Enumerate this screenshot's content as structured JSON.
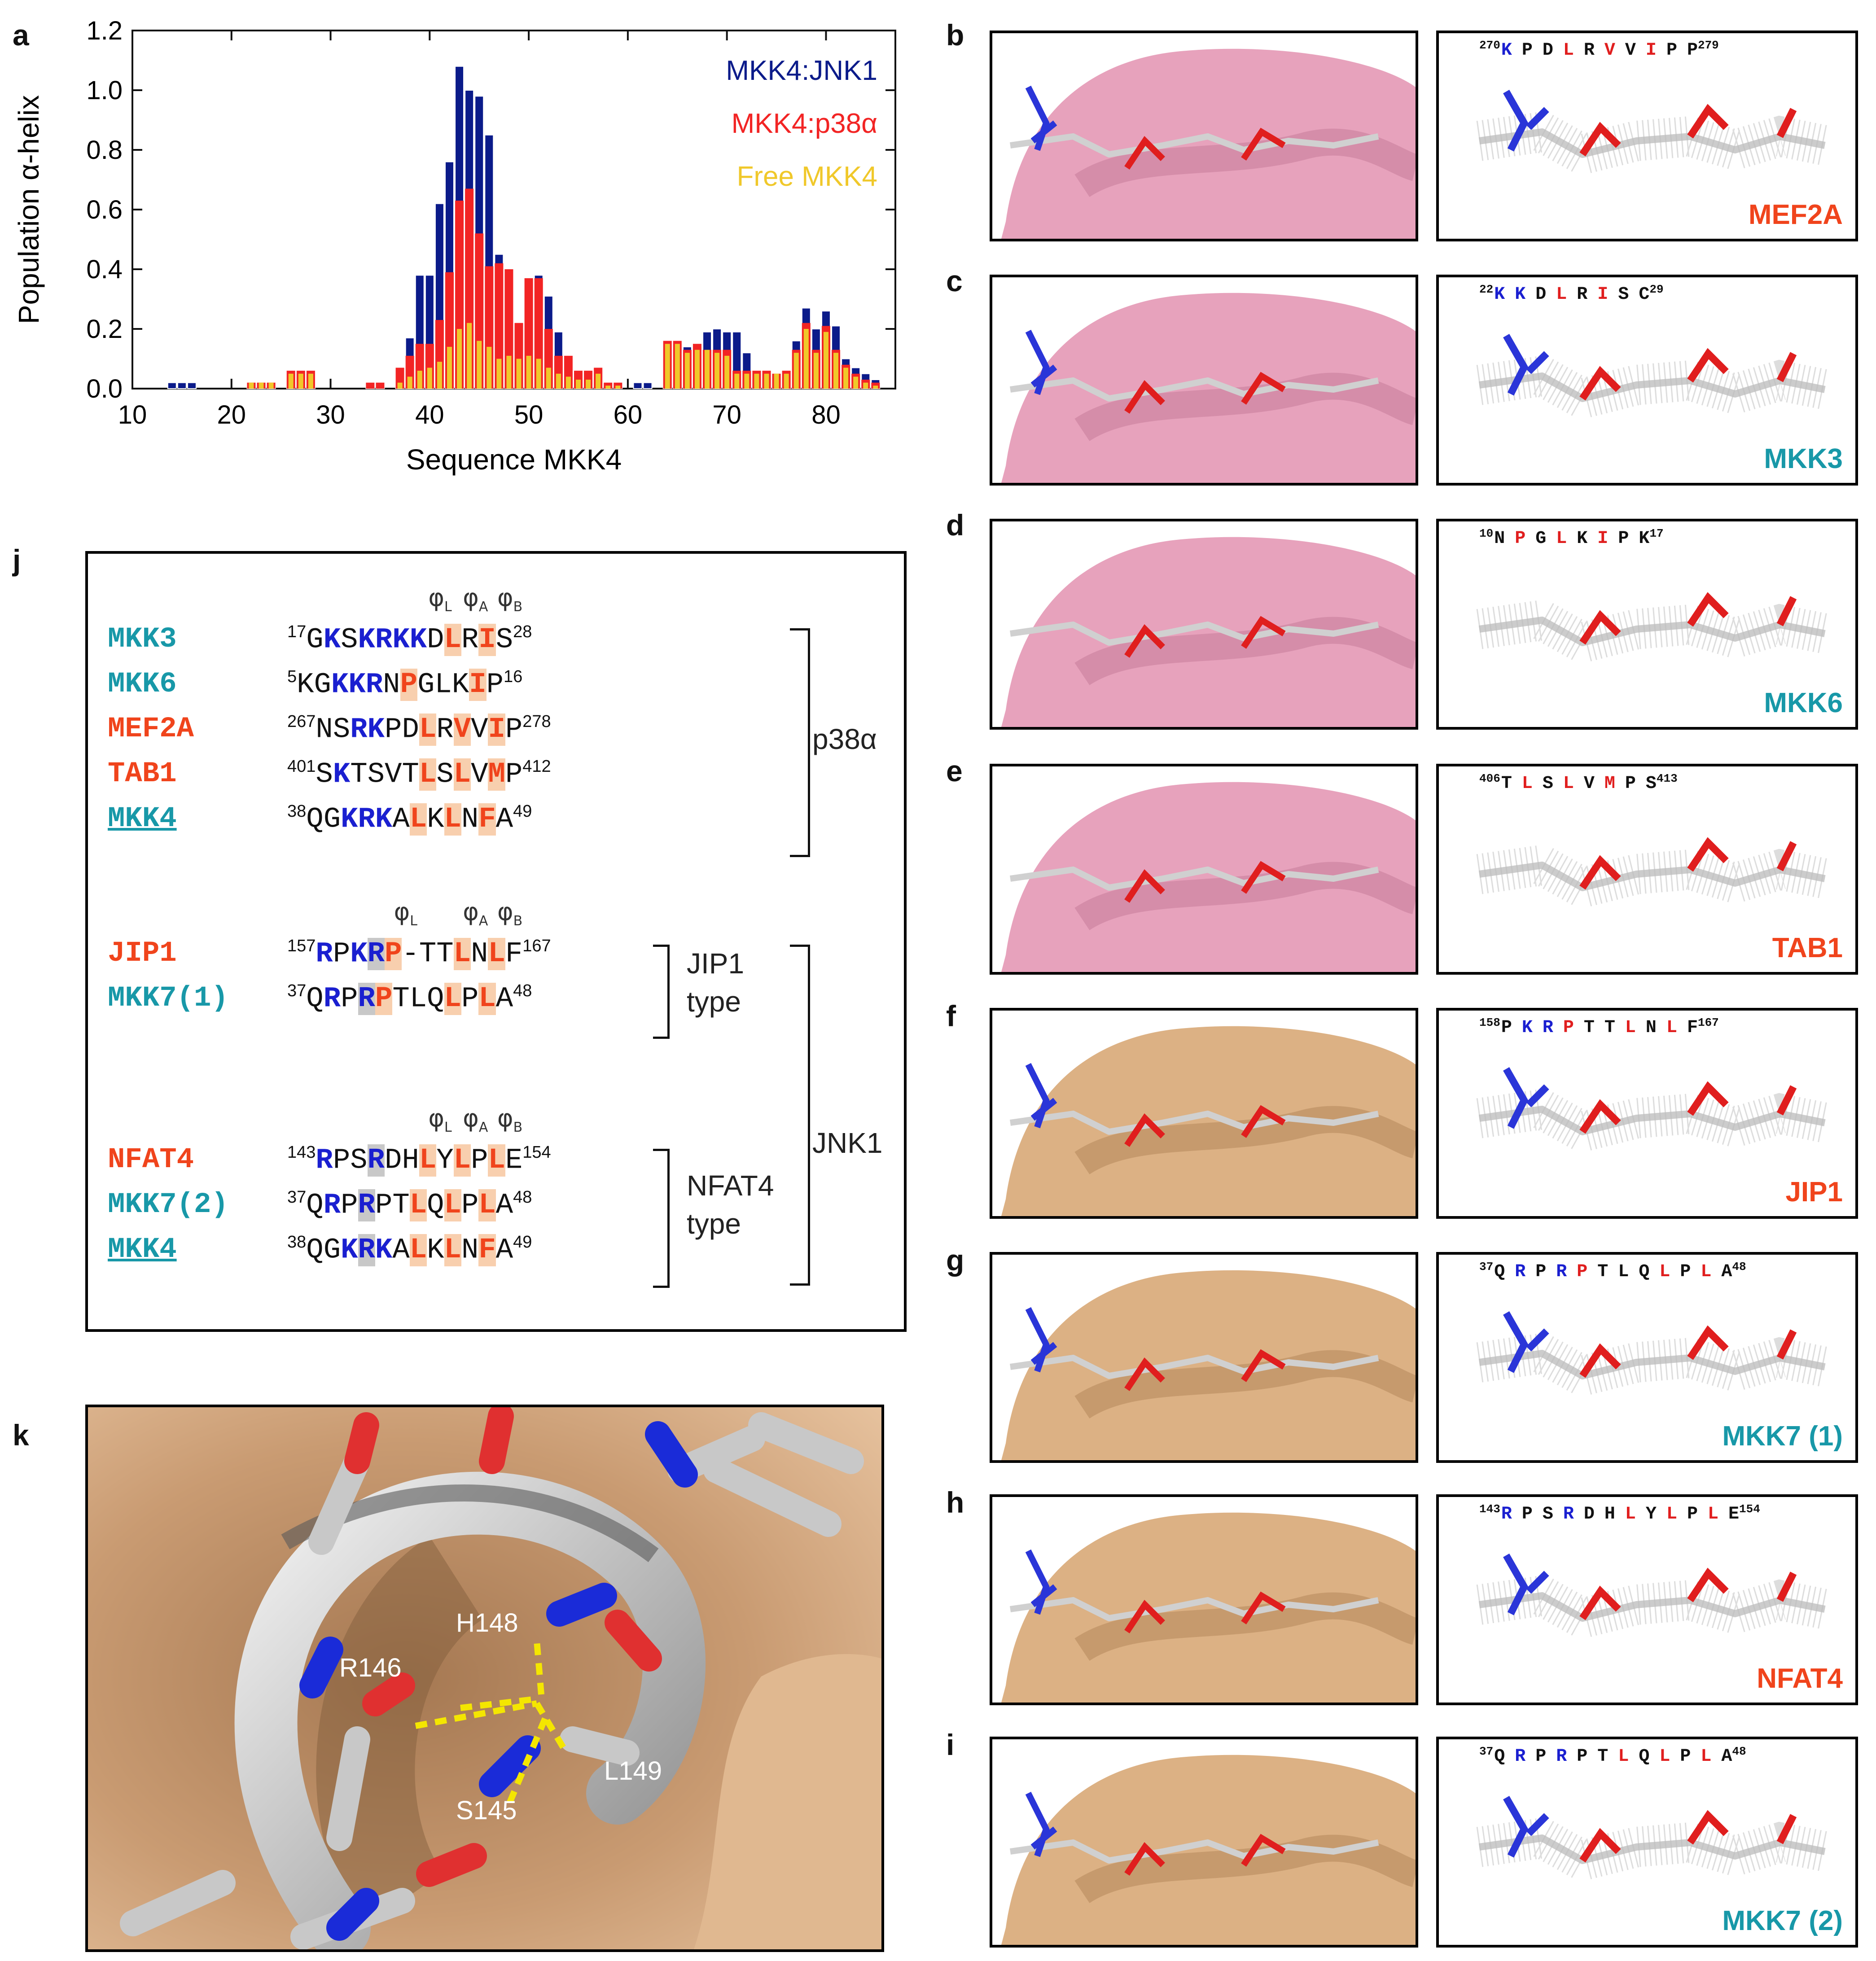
{
  "panels": {
    "a": "a",
    "b": "b",
    "c": "c",
    "d": "d",
    "e": "e",
    "f": "f",
    "g": "g",
    "h": "h",
    "i": "i",
    "j": "j",
    "k": "k"
  },
  "chart_data": {
    "type": "bar",
    "ylabel": "Population α-helix",
    "xlabel": "Sequence MKK4",
    "xlim": [
      10,
      87
    ],
    "ylim": [
      0,
      1.2
    ],
    "xticks": [
      "10",
      "20",
      "30",
      "40",
      "50",
      "60",
      "70",
      "80"
    ],
    "yticks": [
      "0.0",
      "0.2",
      "0.4",
      "0.6",
      "0.8",
      "1.0",
      "1.2"
    ],
    "legend": [
      "MKK4:JNK1",
      "MKK4:p38α",
      "Free MKK4"
    ],
    "colors": [
      "#0b1b8a",
      "#f22424",
      "#f0c82a"
    ],
    "series": [
      {
        "name": "MKK4:JNK1",
        "x": [
          14,
          15,
          16,
          22,
          23,
          24,
          26,
          27,
          28,
          34,
          35,
          37,
          38,
          39,
          40,
          41,
          42,
          43,
          44,
          45,
          46,
          47,
          48,
          49,
          50,
          51,
          52,
          53,
          54,
          55,
          56,
          57,
          58,
          59,
          61,
          62,
          64,
          65,
          66,
          67,
          68,
          69,
          70,
          71,
          72,
          73,
          74,
          75,
          76,
          77,
          78,
          79,
          80,
          81,
          82,
          83,
          84,
          85
        ],
        "values": [
          0.02,
          0.02,
          0.02,
          0.02,
          0.02,
          0.02,
          0.06,
          0.06,
          0.06,
          0.02,
          0.02,
          0.07,
          0.17,
          0.38,
          0.38,
          0.62,
          0.76,
          1.08,
          1.0,
          0.98,
          0.85,
          0.45,
          0.4,
          0.22,
          0.31,
          0.38,
          0.31,
          0.19,
          0.11,
          0.06,
          0.06,
          0.07,
          0.02,
          0.02,
          0.02,
          0.02,
          0.16,
          0.16,
          0.14,
          0.15,
          0.19,
          0.2,
          0.19,
          0.19,
          0.12,
          0.06,
          0.06,
          0.05,
          0.06,
          0.16,
          0.27,
          0.2,
          0.26,
          0.21,
          0.1,
          0.07,
          0.05,
          0.03
        ]
      },
      {
        "name": "MKK4:p38α",
        "x": [
          14,
          15,
          16,
          22,
          23,
          24,
          26,
          27,
          28,
          34,
          35,
          37,
          38,
          39,
          40,
          41,
          42,
          43,
          44,
          45,
          46,
          47,
          48,
          49,
          50,
          51,
          52,
          53,
          54,
          55,
          56,
          57,
          58,
          59,
          61,
          62,
          64,
          65,
          66,
          67,
          68,
          69,
          70,
          71,
          72,
          73,
          74,
          75,
          76,
          77,
          78,
          79,
          80,
          81,
          82,
          83,
          84,
          85
        ],
        "values": [
          0.0,
          0.0,
          0.0,
          0.02,
          0.02,
          0.02,
          0.06,
          0.06,
          0.06,
          0.02,
          0.02,
          0.07,
          0.11,
          0.15,
          0.15,
          0.23,
          0.39,
          0.63,
          0.67,
          0.52,
          0.41,
          0.42,
          0.4,
          0.22,
          0.37,
          0.37,
          0.2,
          0.11,
          0.11,
          0.06,
          0.06,
          0.07,
          0.02,
          0.02,
          0.0,
          0.0,
          0.16,
          0.16,
          0.13,
          0.15,
          0.13,
          0.13,
          0.13,
          0.06,
          0.06,
          0.06,
          0.06,
          0.05,
          0.06,
          0.13,
          0.22,
          0.13,
          0.21,
          0.13,
          0.08,
          0.05,
          0.03,
          0.02
        ]
      },
      {
        "name": "Free MKK4",
        "x": [
          14,
          15,
          16,
          22,
          23,
          24,
          26,
          27,
          28,
          34,
          35,
          37,
          38,
          39,
          40,
          41,
          42,
          43,
          44,
          45,
          46,
          47,
          48,
          49,
          50,
          51,
          52,
          53,
          54,
          55,
          56,
          57,
          58,
          59,
          61,
          62,
          64,
          65,
          66,
          67,
          68,
          69,
          70,
          71,
          72,
          73,
          74,
          75,
          76,
          77,
          78,
          79,
          80,
          81,
          82,
          83,
          84,
          85
        ],
        "values": [
          0.0,
          0.0,
          0.0,
          0.02,
          0.02,
          0.02,
          0.05,
          0.05,
          0.05,
          0.0,
          0.0,
          0.02,
          0.04,
          0.06,
          0.07,
          0.09,
          0.14,
          0.2,
          0.22,
          0.16,
          0.14,
          0.1,
          0.11,
          0.1,
          0.11,
          0.1,
          0.07,
          0.05,
          0.04,
          0.03,
          0.03,
          0.05,
          0.01,
          0.01,
          0.0,
          0.0,
          0.15,
          0.15,
          0.12,
          0.13,
          0.13,
          0.12,
          0.11,
          0.05,
          0.05,
          0.05,
          0.05,
          0.05,
          0.05,
          0.12,
          0.2,
          0.12,
          0.19,
          0.12,
          0.07,
          0.04,
          0.02,
          0.01
        ]
      }
    ]
  },
  "structures": [
    {
      "panel": "b",
      "name": "MEF2A",
      "color": "orange",
      "seq": [
        {
          "t": "K",
          "c": "blu",
          "n": "270"
        },
        {
          "t": "P",
          "c": "blk"
        },
        {
          "t": "D",
          "c": "blk"
        },
        {
          "t": "L",
          "c": "red"
        },
        {
          "t": "R",
          "c": "blk"
        },
        {
          "t": "V",
          "c": "red"
        },
        {
          "t": "V",
          "c": "blk"
        },
        {
          "t": "I",
          "c": "red"
        },
        {
          "t": "P",
          "c": "blk"
        },
        {
          "t": "P",
          "c": "blk",
          "e": "279"
        }
      ],
      "surf": "pink"
    },
    {
      "panel": "c",
      "name": "MKK3",
      "color": "teal",
      "seq": [
        {
          "t": "K",
          "c": "blu",
          "n": "22"
        },
        {
          "t": "K",
          "c": "blu"
        },
        {
          "t": "D",
          "c": "blk"
        },
        {
          "t": "L",
          "c": "red"
        },
        {
          "t": "R",
          "c": "blk"
        },
        {
          "t": "I",
          "c": "red"
        },
        {
          "t": "S",
          "c": "blk"
        },
        {
          "t": "C",
          "c": "blk",
          "e": "29"
        }
      ],
      "surf": "pink"
    },
    {
      "panel": "d",
      "name": "MKK6",
      "color": "teal",
      "seq": [
        {
          "t": "N",
          "c": "blk",
          "n": "10"
        },
        {
          "t": "P",
          "c": "red"
        },
        {
          "t": "G",
          "c": "blk"
        },
        {
          "t": "L",
          "c": "red"
        },
        {
          "t": "K",
          "c": "blk"
        },
        {
          "t": "I",
          "c": "red"
        },
        {
          "t": "P",
          "c": "blk"
        },
        {
          "t": "K",
          "c": "blk",
          "e": "17"
        }
      ],
      "surf": "pink"
    },
    {
      "panel": "e",
      "name": "TAB1",
      "color": "orange",
      "seq": [
        {
          "t": "T",
          "c": "blk",
          "n": "406"
        },
        {
          "t": "L",
          "c": "red"
        },
        {
          "t": "S",
          "c": "blk"
        },
        {
          "t": "L",
          "c": "red"
        },
        {
          "t": "V",
          "c": "blk"
        },
        {
          "t": "M",
          "c": "red"
        },
        {
          "t": "P",
          "c": "blk"
        },
        {
          "t": "S",
          "c": "blk",
          "e": "413"
        }
      ],
      "surf": "pink"
    },
    {
      "panel": "f",
      "name": "JIP1",
      "color": "orange",
      "seq": [
        {
          "t": "P",
          "c": "blk",
          "n": "158"
        },
        {
          "t": "K",
          "c": "blu"
        },
        {
          "t": "R",
          "c": "blu"
        },
        {
          "t": "P",
          "c": "red"
        },
        {
          "t": "T",
          "c": "blk"
        },
        {
          "t": "T",
          "c": "blk"
        },
        {
          "t": "L",
          "c": "red"
        },
        {
          "t": "N",
          "c": "blk"
        },
        {
          "t": "L",
          "c": "red"
        },
        {
          "t": "F",
          "c": "blk",
          "e": "167"
        }
      ],
      "surf": "tan"
    },
    {
      "panel": "g",
      "name": "MKK7 (1)",
      "color": "teal",
      "seq": [
        {
          "t": "Q",
          "c": "blk",
          "n": "37"
        },
        {
          "t": "R",
          "c": "blu"
        },
        {
          "t": "P",
          "c": "blk"
        },
        {
          "t": "R",
          "c": "blu"
        },
        {
          "t": "P",
          "c": "red"
        },
        {
          "t": "T",
          "c": "blk"
        },
        {
          "t": "L",
          "c": "blk"
        },
        {
          "t": "Q",
          "c": "blk"
        },
        {
          "t": "L",
          "c": "red"
        },
        {
          "t": "P",
          "c": "blk"
        },
        {
          "t": "L",
          "c": "red"
        },
        {
          "t": "A",
          "c": "blk",
          "e": "48"
        }
      ],
      "surf": "tan"
    },
    {
      "panel": "h",
      "name": "NFAT4",
      "color": "orange",
      "seq": [
        {
          "t": "R",
          "c": "blu",
          "n": "143"
        },
        {
          "t": "P",
          "c": "blk"
        },
        {
          "t": "S",
          "c": "blk"
        },
        {
          "t": "R",
          "c": "blu"
        },
        {
          "t": "D",
          "c": "blk"
        },
        {
          "t": "H",
          "c": "blk"
        },
        {
          "t": "L",
          "c": "red"
        },
        {
          "t": "Y",
          "c": "blk"
        },
        {
          "t": "L",
          "c": "red"
        },
        {
          "t": "P",
          "c": "blk"
        },
        {
          "t": "L",
          "c": "red"
        },
        {
          "t": "E",
          "c": "blk",
          "e": "154"
        }
      ],
      "surf": "tan"
    },
    {
      "panel": "i",
      "name": "MKK7 (2)",
      "color": "teal",
      "seq": [
        {
          "t": "Q",
          "c": "blk",
          "n": "37"
        },
        {
          "t": "R",
          "c": "blu"
        },
        {
          "t": "P",
          "c": "blk"
        },
        {
          "t": "R",
          "c": "blu"
        },
        {
          "t": "P",
          "c": "blk"
        },
        {
          "t": "T",
          "c": "blk"
        },
        {
          "t": "L",
          "c": "red"
        },
        {
          "t": "Q",
          "c": "blk"
        },
        {
          "t": "L",
          "c": "red"
        },
        {
          "t": "P",
          "c": "blk"
        },
        {
          "t": "L",
          "c": "red"
        },
        {
          "t": "A",
          "c": "blk",
          "e": "48"
        }
      ],
      "surf": "tan"
    }
  ],
  "alignment": {
    "phi_labels": [
      "φ",
      "φ",
      "φ"
    ],
    "phi_subs": [
      "L",
      "A",
      "B"
    ],
    "groups": {
      "p38": "p38α",
      "jnk": "JNK1",
      "jip_type": [
        "JIP1",
        "type"
      ],
      "nfat_type": [
        "NFAT4",
        "type"
      ]
    },
    "rows": [
      {
        "name": "MKK3",
        "color": "teal",
        "n": "17",
        "seq": "GKSKRKKDLRIS",
        "e": "28",
        "blue": [
          1,
          3,
          4,
          5,
          6
        ],
        "red": [
          8,
          10
        ]
      },
      {
        "name": "MKK6",
        "color": "teal",
        "n": "5",
        "seq": "KGKKRNPGLKIP",
        "e": "16",
        "blue": [
          2,
          3,
          4
        ],
        "red": [
          6,
          10
        ]
      },
      {
        "name": "MEF2A",
        "color": "orange",
        "n": "267",
        "seq": "NSRKPDLRVVIP",
        "e": "278",
        "blue": [
          2,
          3
        ],
        "red": [
          6,
          8,
          10
        ]
      },
      {
        "name": "TAB1",
        "color": "orange",
        "n": "401",
        "seq": "SKTSVTLSLVMP",
        "e": "412",
        "blue": [
          1
        ],
        "red": [
          6,
          8,
          10
        ]
      },
      {
        "name": "MKK4",
        "color": "teal",
        "u": true,
        "n": "38",
        "seq": "QGKRKALKLNFA",
        "e": "49",
        "blue": [
          2,
          3,
          4
        ],
        "red": [
          6,
          8,
          10
        ]
      },
      {
        "name": "JIP1",
        "color": "orange",
        "n": "157",
        "seq": "RPKRP-TTLNLF",
        "e": "167",
        "blue": [
          0,
          2,
          3
        ],
        "red": [
          4,
          8,
          10
        ]
      },
      {
        "name": "MKK7(1)",
        "color": "teal",
        "n": "37",
        "seq": "QRPRPTLQLPLA",
        "e": "48",
        "blue": [
          1,
          3
        ],
        "red": [
          4,
          8,
          10
        ]
      },
      {
        "name": "NFAT4",
        "color": "orange",
        "n": "143",
        "seq": "RPSRDHLYLPLE",
        "e": "154",
        "blue": [
          0,
          3
        ],
        "red": [
          6,
          8,
          10
        ]
      },
      {
        "name": "MKK7(2)",
        "color": "teal",
        "n": "37",
        "seq": "QRPRPTLQLPLA",
        "e": "48",
        "blue": [
          1,
          3
        ],
        "red": [
          6,
          8,
          10
        ]
      },
      {
        "name": "MKK4",
        "color": "teal",
        "u": true,
        "n": "38",
        "seq": "QGKRKALKLNFA",
        "e": "49",
        "blue": [
          2,
          3,
          4
        ],
        "red": [
          6,
          8,
          10
        ]
      }
    ]
  },
  "panel_k": {
    "labels": [
      "H148",
      "R146",
      "L149",
      "S145"
    ]
  }
}
